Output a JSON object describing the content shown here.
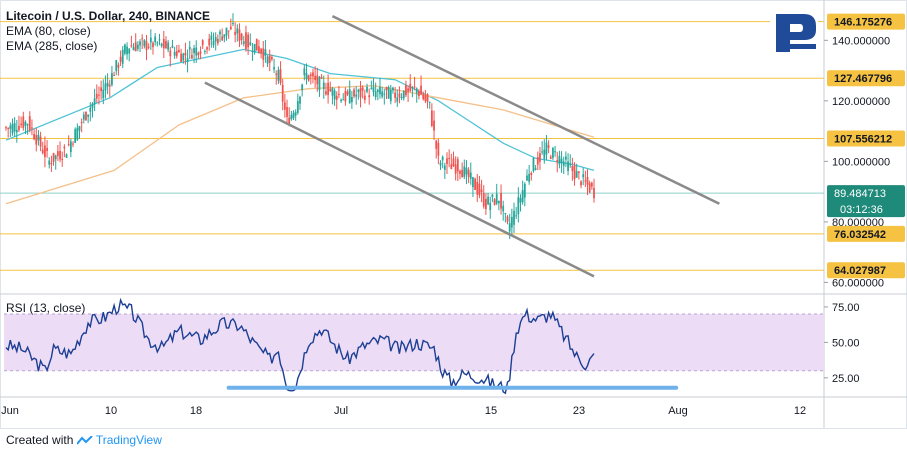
{
  "header": {
    "title": "Litecoin / U.S. Dollar, 240, BINANCE",
    "ema1": "EMA (80, close)",
    "ema2": "EMA (285, close)"
  },
  "rsi_label": "RSI (13, close)",
  "footer": {
    "created_with": "Created with",
    "brand": "TradingView"
  },
  "colors": {
    "up": "#26a69a",
    "down": "#ef5350",
    "ema80": "#4fc3d6",
    "ema285": "#f5c089",
    "level_line": "#f5c242",
    "level_tag": "#f5c242",
    "price_tag": "#1e8a7a",
    "channel": "#8a8a8a",
    "rsi_line": "#1c3f94",
    "rsi_band": "#ecdcf5",
    "rsi_support": "#6fb1ea"
  },
  "chart_data": [
    {
      "type": "candlestick",
      "title": "Litecoin / U.S. Dollar, 240, BINANCE",
      "ylim": [
        56.5,
        152
      ],
      "y_ticks": [
        "140.000000",
        "120.000000",
        "100.000000",
        "80.000000",
        "60.000000"
      ],
      "x_ticks": [
        "Jun",
        "10",
        "18",
        "Jul",
        "15",
        "23",
        "Aug",
        "12"
      ],
      "last_price": "89.484713",
      "countdown": "03:12:36",
      "levels": [
        "146.175276",
        "127.467796",
        "107.556212",
        "76.032542",
        "64.027987"
      ],
      "ohlc_anchors": [
        {
          "i": 0,
          "p": 111
        },
        {
          "i": 10,
          "p": 113
        },
        {
          "i": 20,
          "p": 100
        },
        {
          "i": 28,
          "p": 104
        },
        {
          "i": 38,
          "p": 117
        },
        {
          "i": 48,
          "p": 127
        },
        {
          "i": 56,
          "p": 138
        },
        {
          "i": 70,
          "p": 139
        },
        {
          "i": 82,
          "p": 135
        },
        {
          "i": 96,
          "p": 140
        },
        {
          "i": 104,
          "p": 144
        },
        {
          "i": 112,
          "p": 139
        },
        {
          "i": 118,
          "p": 137
        },
        {
          "i": 126,
          "p": 128
        },
        {
          "i": 130,
          "p": 113
        },
        {
          "i": 134,
          "p": 118
        },
        {
          "i": 138,
          "p": 129
        },
        {
          "i": 146,
          "p": 125
        },
        {
          "i": 156,
          "p": 121
        },
        {
          "i": 168,
          "p": 123
        },
        {
          "i": 180,
          "p": 122
        },
        {
          "i": 190,
          "p": 124
        },
        {
          "i": 196,
          "p": 118
        },
        {
          "i": 200,
          "p": 100
        },
        {
          "i": 210,
          "p": 98
        },
        {
          "i": 216,
          "p": 93
        },
        {
          "i": 222,
          "p": 86
        },
        {
          "i": 228,
          "p": 88
        },
        {
          "i": 232,
          "p": 78
        },
        {
          "i": 236,
          "p": 84
        },
        {
          "i": 242,
          "p": 97
        },
        {
          "i": 250,
          "p": 104
        },
        {
          "i": 258,
          "p": 100
        },
        {
          "i": 266,
          "p": 94
        },
        {
          "i": 272,
          "p": 90
        }
      ],
      "ema": [
        {
          "name": "EMA (80, close)",
          "points": [
            [
              0,
              107
            ],
            [
              48,
              121
            ],
            [
              70,
              131
            ],
            [
              110,
              137
            ],
            [
              130,
              134
            ],
            [
              150,
              129
            ],
            [
              180,
              127
            ],
            [
              200,
              120
            ],
            [
              215,
              113
            ],
            [
              230,
              106
            ],
            [
              245,
              101
            ],
            [
              262,
              99
            ],
            [
              272,
              97
            ]
          ]
        },
        {
          "name": "EMA (285, close)",
          "points": [
            [
              0,
              86
            ],
            [
              50,
              97
            ],
            [
              80,
              112
            ],
            [
              110,
              121
            ],
            [
              140,
              124
            ],
            [
              170,
              125
            ],
            [
              200,
              121
            ],
            [
              230,
              117
            ],
            [
              272,
              108
            ]
          ]
        }
      ],
      "channel": {
        "upper": [
          [
            151,
            148
          ],
          [
            330,
            86
          ]
        ],
        "lower": [
          [
            92,
            126
          ],
          [
            272,
            62
          ]
        ]
      }
    },
    {
      "type": "line",
      "title": "RSI (13, close)",
      "ylim": [
        15,
        82
      ],
      "y_ticks": [
        "75.00",
        "50.00",
        "25.00"
      ],
      "overbought": 70,
      "oversold": 30,
      "support_level": 18,
      "rsi_anchors": [
        {
          "i": 0,
          "v": 48
        },
        {
          "i": 8,
          "v": 45
        },
        {
          "i": 18,
          "v": 30
        },
        {
          "i": 22,
          "v": 45
        },
        {
          "i": 30,
          "v": 42
        },
        {
          "i": 38,
          "v": 64
        },
        {
          "i": 46,
          "v": 68
        },
        {
          "i": 52,
          "v": 76
        },
        {
          "i": 58,
          "v": 72
        },
        {
          "i": 66,
          "v": 52
        },
        {
          "i": 72,
          "v": 46
        },
        {
          "i": 80,
          "v": 58
        },
        {
          "i": 90,
          "v": 52
        },
        {
          "i": 100,
          "v": 63
        },
        {
          "i": 108,
          "v": 62
        },
        {
          "i": 116,
          "v": 47
        },
        {
          "i": 122,
          "v": 38
        },
        {
          "i": 126,
          "v": 45
        },
        {
          "i": 130,
          "v": 20
        },
        {
          "i": 134,
          "v": 20
        },
        {
          "i": 140,
          "v": 52
        },
        {
          "i": 146,
          "v": 60
        },
        {
          "i": 152,
          "v": 48
        },
        {
          "i": 158,
          "v": 38
        },
        {
          "i": 166,
          "v": 48
        },
        {
          "i": 174,
          "v": 52
        },
        {
          "i": 182,
          "v": 45
        },
        {
          "i": 190,
          "v": 50
        },
        {
          "i": 198,
          "v": 46
        },
        {
          "i": 202,
          "v": 30
        },
        {
          "i": 206,
          "v": 22
        },
        {
          "i": 212,
          "v": 28
        },
        {
          "i": 220,
          "v": 25
        },
        {
          "i": 226,
          "v": 20
        },
        {
          "i": 232,
          "v": 18
        },
        {
          "i": 236,
          "v": 58
        },
        {
          "i": 240,
          "v": 70
        },
        {
          "i": 246,
          "v": 66
        },
        {
          "i": 252,
          "v": 70
        },
        {
          "i": 258,
          "v": 55
        },
        {
          "i": 264,
          "v": 40
        },
        {
          "i": 268,
          "v": 35
        },
        {
          "i": 272,
          "v": 40
        }
      ]
    }
  ]
}
